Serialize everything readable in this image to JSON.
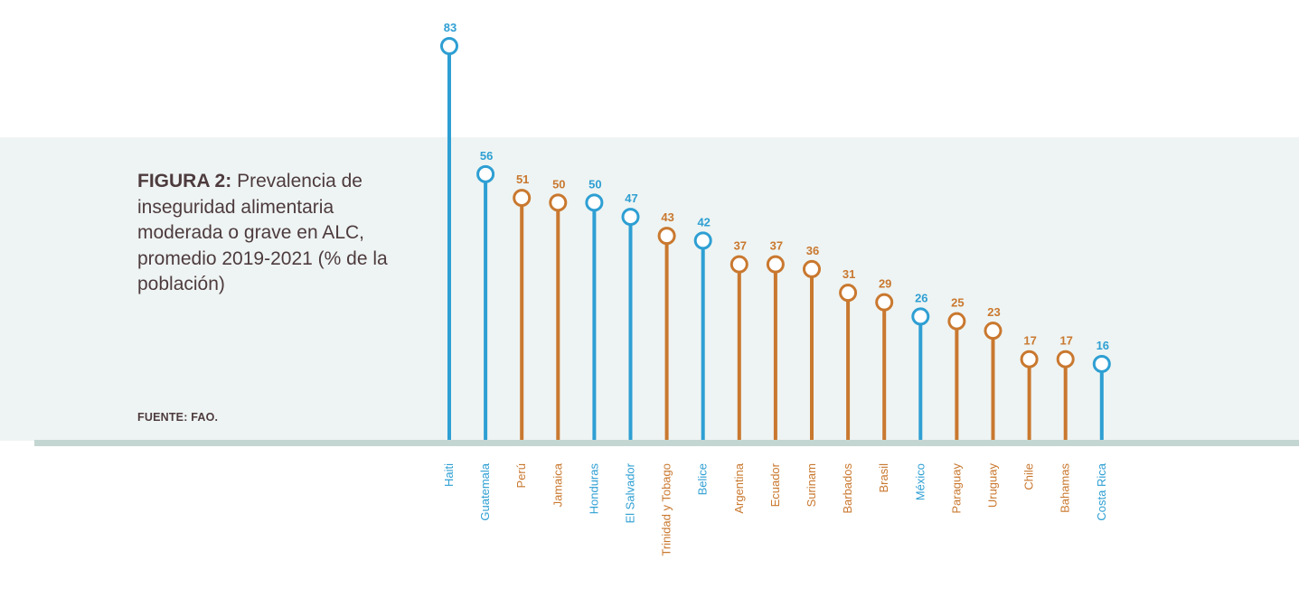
{
  "figure": {
    "title_lead": "FIGURA 2:",
    "title_rest": " Prevalencia de inseguridad alimentaria moderada o grave en ALC, promedio 2019-2021 (% de la población)",
    "source": "FUENTE: FAO."
  },
  "colors": {
    "blue": "#2e9fd3",
    "orange": "#c9782f",
    "text": "#4d3b3e",
    "band": "#eef4f3",
    "baseline": "#c4d6d2"
  },
  "chart_data": {
    "type": "lollipop",
    "title": "FIGURA 2: Prevalencia de inseguridad alimentaria moderada o grave en ALC, promedio 2019-2021 (% de la población)",
    "xlabel": "",
    "ylabel": "",
    "ylim": [
      0,
      83
    ],
    "grid": false,
    "categories": [
      "Haiti",
      "Guatemala",
      "Perú",
      "Jamaica",
      "Honduras",
      "El Salvador",
      "Trinidad y Tobago",
      "Belice",
      "Argentina",
      "Ecuador",
      "Surinam",
      "Barbados",
      "Brasil",
      "México",
      "Paraguay",
      "Uruguay",
      "Chile",
      "Bahamas",
      "Costa Rica"
    ],
    "values": [
      83,
      56,
      51,
      50,
      50,
      47,
      43,
      42,
      37,
      37,
      36,
      31,
      29,
      26,
      25,
      23,
      17,
      17,
      16
    ],
    "colors": [
      "blue",
      "blue",
      "orange",
      "orange",
      "blue",
      "blue",
      "orange",
      "blue",
      "orange",
      "orange",
      "orange",
      "orange",
      "orange",
      "blue",
      "orange",
      "orange",
      "orange",
      "orange",
      "blue"
    ]
  }
}
